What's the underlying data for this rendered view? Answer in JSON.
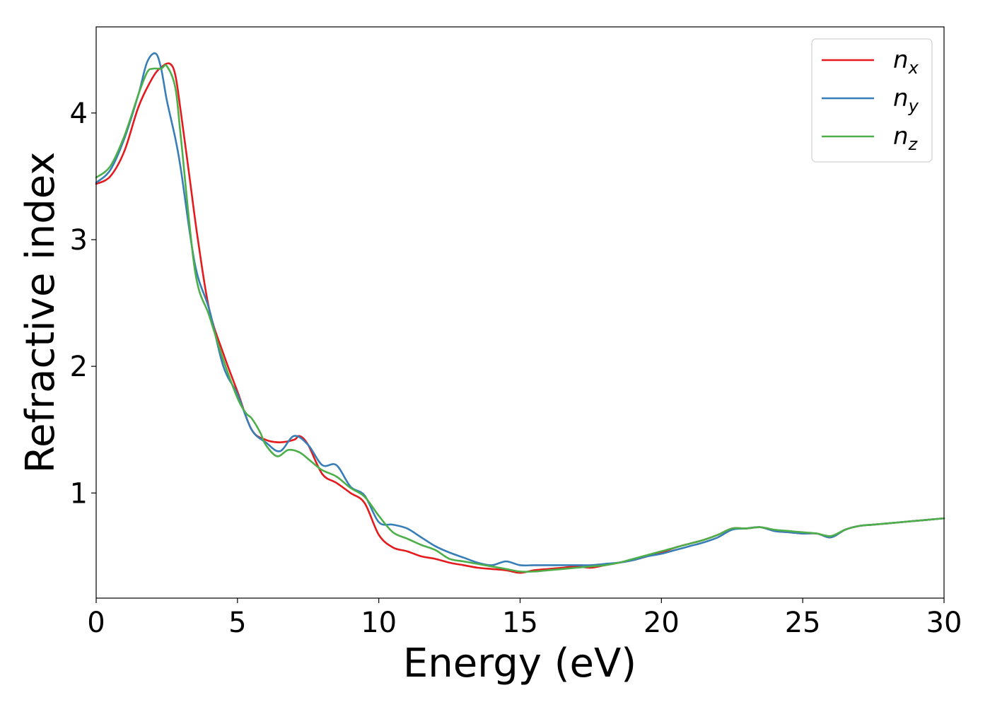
{
  "chart_data": {
    "type": "line",
    "title": "",
    "xlabel": "Energy (eV)",
    "ylabel": "Refractive index",
    "xlim": [
      0,
      30
    ],
    "ylim": [
      0.17,
      4.68
    ],
    "xticks": [
      0,
      5,
      10,
      15,
      20,
      25,
      30
    ],
    "xtick_labels": [
      "0",
      "5",
      "10",
      "15",
      "20",
      "25",
      "30"
    ],
    "yticks": [
      1,
      2,
      3,
      4
    ],
    "ytick_labels": [
      "1",
      "2",
      "3",
      "4"
    ],
    "grid": false,
    "legend_position": "top-right",
    "series": [
      {
        "name": "n",
        "subscript": "x",
        "color": "#e41a1c",
        "x": [
          0,
          0.5,
          1.0,
          1.5,
          2.0,
          2.3,
          2.6,
          2.8,
          3.0,
          3.3,
          3.6,
          4.0,
          4.5,
          5.0,
          5.5,
          6.0,
          6.5,
          7.0,
          7.2,
          7.5,
          8.0,
          8.5,
          9.0,
          9.5,
          10.0,
          10.5,
          11.0,
          11.5,
          12.0,
          12.5,
          13.0,
          13.5,
          14.0,
          14.5,
          15.0,
          15.5,
          16.0,
          16.5,
          17.0,
          17.5,
          18.0,
          18.5,
          19.0,
          19.5,
          20.0,
          20.5,
          21.0,
          21.5,
          22.0,
          22.5,
          23.0,
          23.5,
          24.0,
          24.5,
          25.0,
          25.5,
          26.0,
          26.5,
          27.0,
          27.5,
          28.0,
          28.5,
          29.0,
          29.5,
          30.0
        ],
        "y": [
          3.44,
          3.5,
          3.7,
          4.05,
          4.28,
          4.36,
          4.39,
          4.3,
          4.0,
          3.5,
          3.0,
          2.45,
          2.1,
          1.8,
          1.5,
          1.42,
          1.4,
          1.42,
          1.45,
          1.38,
          1.15,
          1.08,
          1.0,
          0.92,
          0.67,
          0.57,
          0.54,
          0.5,
          0.48,
          0.45,
          0.43,
          0.41,
          0.4,
          0.39,
          0.37,
          0.39,
          0.4,
          0.41,
          0.42,
          0.41,
          0.43,
          0.45,
          0.47,
          0.5,
          0.53,
          0.57,
          0.6,
          0.63,
          0.67,
          0.72,
          0.72,
          0.73,
          0.7,
          0.69,
          0.68,
          0.68,
          0.65,
          0.71,
          0.74,
          0.75,
          0.76,
          0.77,
          0.78,
          0.79,
          0.8
        ]
      },
      {
        "name": "n",
        "subscript": "y",
        "color": "#377eb8",
        "x": [
          0,
          0.5,
          1.0,
          1.5,
          1.8,
          2.1,
          2.3,
          2.5,
          2.8,
          3.0,
          3.5,
          4.0,
          4.5,
          5.0,
          5.5,
          6.0,
          6.5,
          7.0,
          7.5,
          8.0,
          8.5,
          9.0,
          9.5,
          10.0,
          10.5,
          11.0,
          11.5,
          12.0,
          12.5,
          13.0,
          13.5,
          14.0,
          14.5,
          15.0,
          15.5,
          16.0,
          16.5,
          17.0,
          17.5,
          18.0,
          18.5,
          19.0,
          19.5,
          20.0,
          20.5,
          21.0,
          21.5,
          22.0,
          22.5,
          23.0,
          23.5,
          24.0,
          24.5,
          25.0,
          25.5,
          26.0,
          26.5,
          27.0,
          27.5,
          28.0,
          28.5,
          29.0,
          29.5,
          30.0
        ],
        "y": [
          3.45,
          3.55,
          3.8,
          4.15,
          4.4,
          4.47,
          4.35,
          4.1,
          3.8,
          3.55,
          2.8,
          2.45,
          2.0,
          1.78,
          1.5,
          1.4,
          1.33,
          1.45,
          1.38,
          1.22,
          1.22,
          1.05,
          0.98,
          0.77,
          0.75,
          0.72,
          0.65,
          0.58,
          0.53,
          0.49,
          0.45,
          0.43,
          0.46,
          0.43,
          0.43,
          0.43,
          0.43,
          0.43,
          0.43,
          0.44,
          0.45,
          0.47,
          0.5,
          0.52,
          0.55,
          0.58,
          0.61,
          0.65,
          0.71,
          0.72,
          0.73,
          0.7,
          0.69,
          0.68,
          0.68,
          0.65,
          0.71,
          0.74,
          0.75,
          0.76,
          0.77,
          0.78,
          0.79,
          0.8
        ]
      },
      {
        "name": "n",
        "subscript": "z",
        "color": "#4daf4a",
        "x": [
          0,
          0.5,
          1.0,
          1.5,
          1.8,
          2.0,
          2.3,
          2.5,
          2.8,
          3.0,
          3.5,
          4.0,
          4.5,
          5.0,
          5.3,
          5.5,
          5.8,
          6.0,
          6.4,
          6.8,
          7.2,
          7.6,
          8.0,
          8.5,
          9.0,
          9.5,
          10.0,
          10.5,
          11.0,
          11.5,
          12.0,
          12.5,
          13.0,
          13.5,
          14.0,
          14.5,
          15.0,
          15.5,
          16.0,
          16.5,
          17.0,
          17.5,
          18.0,
          18.5,
          19.0,
          19.5,
          20.0,
          20.5,
          21.0,
          21.5,
          22.0,
          22.5,
          23.0,
          23.5,
          24.0,
          24.5,
          25.0,
          25.5,
          26.0,
          26.5,
          27.0,
          27.5,
          28.0,
          28.5,
          29.0,
          29.5,
          30.0
        ],
        "y": [
          3.49,
          3.58,
          3.82,
          4.15,
          4.32,
          4.35,
          4.35,
          4.37,
          4.2,
          3.8,
          2.75,
          2.4,
          2.05,
          1.75,
          1.63,
          1.59,
          1.48,
          1.38,
          1.29,
          1.34,
          1.32,
          1.25,
          1.18,
          1.13,
          1.04,
          0.97,
          0.82,
          0.69,
          0.64,
          0.59,
          0.55,
          0.48,
          0.46,
          0.44,
          0.42,
          0.4,
          0.38,
          0.38,
          0.39,
          0.4,
          0.41,
          0.42,
          0.43,
          0.45,
          0.48,
          0.51,
          0.54,
          0.57,
          0.6,
          0.63,
          0.67,
          0.72,
          0.72,
          0.73,
          0.71,
          0.7,
          0.69,
          0.68,
          0.66,
          0.71,
          0.74,
          0.75,
          0.76,
          0.77,
          0.78,
          0.79,
          0.8
        ]
      }
    ]
  }
}
